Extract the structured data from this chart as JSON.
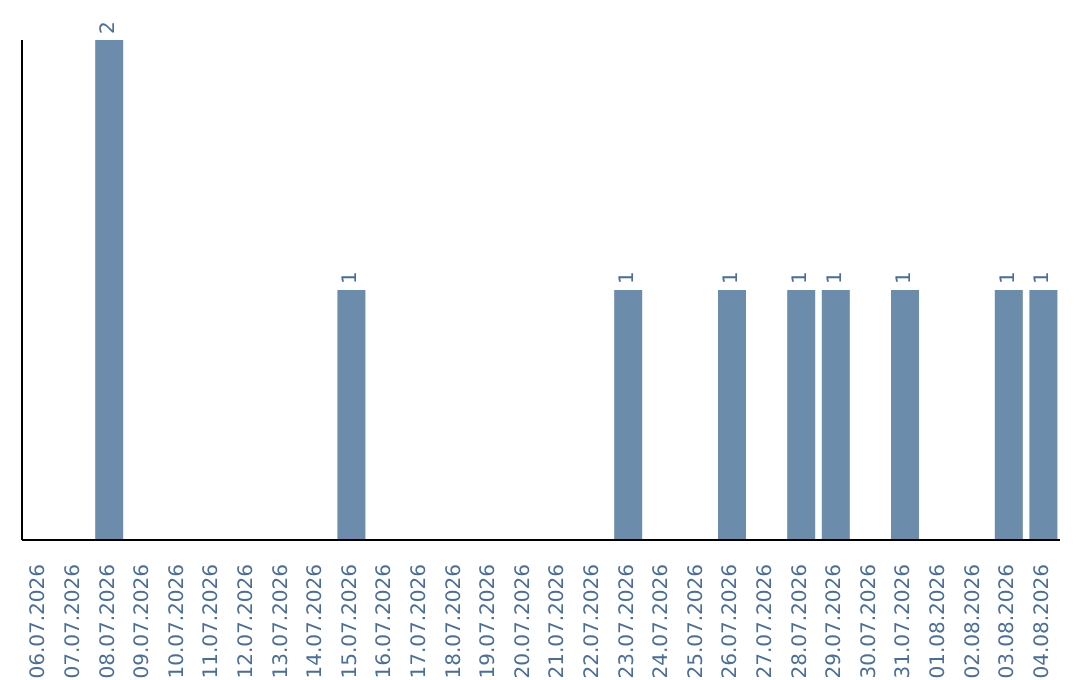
{
  "chart_data": {
    "type": "bar",
    "categories": [
      "06.07.2026",
      "07.07.2026",
      "08.07.2026",
      "09.07.2026",
      "10.07.2026",
      "11.07.2026",
      "12.07.2026",
      "13.07.2026",
      "14.07.2026",
      "15.07.2026",
      "16.07.2026",
      "17.07.2026",
      "18.07.2026",
      "19.07.2026",
      "20.07.2026",
      "21.07.2026",
      "22.07.2026",
      "23.07.2026",
      "24.07.2026",
      "25.07.2026",
      "26.07.2026",
      "27.07.2026",
      "28.07.2026",
      "29.07.2026",
      "30.07.2026",
      "31.07.2026",
      "01.08.2026",
      "02.08.2026",
      "03.08.2026",
      "04.08.2026"
    ],
    "values": [
      0,
      0,
      2,
      0,
      0,
      0,
      0,
      0,
      0,
      1,
      0,
      0,
      0,
      0,
      0,
      0,
      0,
      1,
      0,
      0,
      1,
      0,
      1,
      1,
      0,
      1,
      0,
      0,
      1,
      1
    ],
    "value_labels": [
      null,
      null,
      "2",
      null,
      null,
      null,
      null,
      null,
      null,
      "1",
      null,
      null,
      null,
      null,
      null,
      null,
      null,
      "1",
      null,
      null,
      "1",
      null,
      "1",
      "1",
      null,
      "1",
      null,
      null,
      "1",
      "1"
    ],
    "color": "#6b8cab",
    "grid": false,
    "legend": false
  }
}
